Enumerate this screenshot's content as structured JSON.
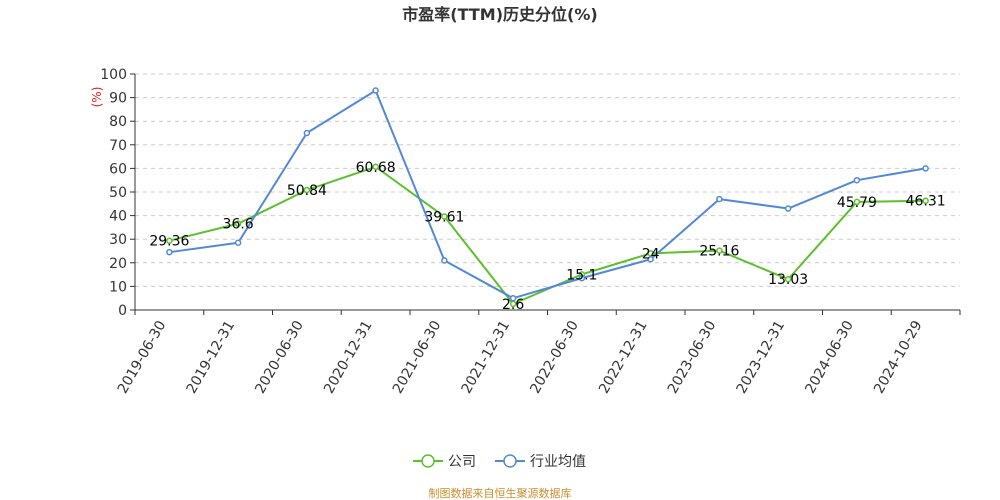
{
  "chart_data": {
    "type": "line",
    "title": "市盈率(TTM)历史分位(%)",
    "ylabel": "(%)",
    "xlabel": "",
    "ylim": [
      0,
      100
    ],
    "ytick_values": [
      0,
      10,
      20,
      30,
      40,
      50,
      60,
      70,
      80,
      90,
      100
    ],
    "categories": [
      "2019-06-30",
      "2019-12-31",
      "2020-06-30",
      "2020-12-31",
      "2021-06-30",
      "2021-12-31",
      "2022-06-30",
      "2022-12-31",
      "2023-06-30",
      "2023-12-31",
      "2024-06-30",
      "2024-10-29"
    ],
    "series": [
      {
        "name": "公司",
        "color": "#5cc02c",
        "values": [
          29.36,
          36.6,
          50.84,
          60.68,
          39.61,
          2.6,
          15.1,
          24,
          25.16,
          13.03,
          45.79,
          46.31
        ],
        "labels": [
          "29.36",
          "36.6",
          "50.84",
          "60.68",
          "39.61",
          "2.6",
          "15.1",
          "24",
          "25.16",
          "13.03",
          "45.79",
          "46.31"
        ]
      },
      {
        "name": "行业均值",
        "color": "#5388d8",
        "values": [
          24.5,
          28.5,
          75,
          93,
          21,
          5,
          13.5,
          21.5,
          47,
          43,
          55,
          60
        ]
      }
    ],
    "grid": "horizontal dashed",
    "legend_position": "bottom-center"
  },
  "source_text": "制图数据来自恒生聚源数据库",
  "colors": {
    "source": "#c98d2f",
    "axis": "#333333",
    "grid": "#cccccc",
    "ylabel": "#e02020"
  }
}
